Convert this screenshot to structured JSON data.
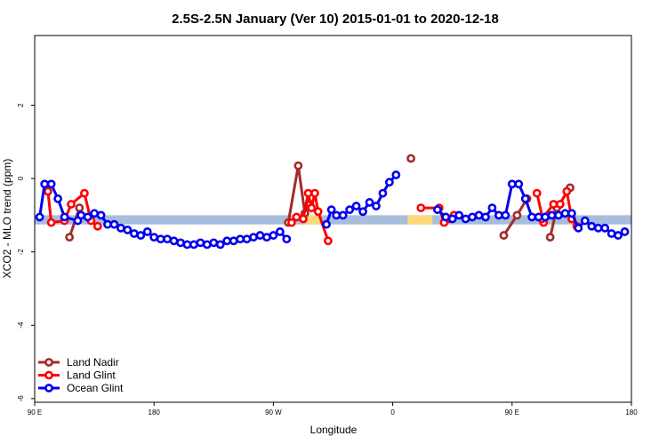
{
  "chart_data": {
    "type": "line",
    "title": "2.5S-2.5N January (Ver 10)   2015-01-01 to 2020-12-18",
    "xlabel": "Longitude",
    "ylabel": "XCO2 - MLO trend (ppm)",
    "xlim": [
      0,
      360
    ],
    "ylim": [
      -6.1,
      3.9
    ],
    "x_ticks": [
      {
        "value": 0,
        "label": "90 E"
      },
      {
        "value": 72,
        "label": "180"
      },
      {
        "value": 144,
        "label": "90 W"
      },
      {
        "value": 216,
        "label": "0"
      },
      {
        "value": 288,
        "label": "90 E"
      },
      {
        "value": 360,
        "label": "180"
      }
    ],
    "y_ticks": [
      {
        "value": 2,
        "label": "2"
      },
      {
        "value": 0,
        "label": "0"
      },
      {
        "value": -2,
        "label": "-2"
      },
      {
        "value": -4,
        "label": "-4"
      },
      {
        "value": -6,
        "label": "-6"
      }
    ],
    "legend_position": "bottom-left",
    "bands": [
      {
        "name": "ocean-mean-band",
        "x": [
          0,
          360
        ],
        "y": [
          -1.25,
          -1.0
        ],
        "color": "#a6bddb"
      },
      {
        "name": "land-band-1",
        "x": [
          164,
          172
        ],
        "y": [
          -1.25,
          -1.0
        ],
        "color": "#ffd97a"
      },
      {
        "name": "land-band-2",
        "x": [
          225,
          240
        ],
        "y": [
          -1.25,
          -1.0
        ],
        "color": "#ffd97a"
      }
    ],
    "series": [
      {
        "name": "Land Nadir",
        "color": "#a52a2a",
        "segments": [
          [
            [
              21,
              -1.6
            ],
            [
              27,
              -0.8
            ]
          ],
          [
            [
              153,
              -1.2
            ],
            [
              159,
              0.35
            ],
            [
              163,
              -0.95
            ],
            [
              166,
              -0.7
            ]
          ],
          [
            [
              227,
              0.55
            ]
          ],
          [
            [
              283,
              -1.55
            ],
            [
              291,
              -1.0
            ],
            [
              297,
              -0.55
            ]
          ],
          [
            [
              311,
              -1.6
            ],
            [
              315,
              -0.8
            ],
            [
              323,
              -0.25
            ]
          ]
        ]
      },
      {
        "name": "Land Glint",
        "color": "#ff0000",
        "segments": [
          [
            [
              8,
              -0.35
            ],
            [
              10,
              -1.2
            ],
            [
              18,
              -1.15
            ],
            [
              22,
              -0.7
            ],
            [
              30,
              -0.4
            ],
            [
              34,
              -1.15
            ],
            [
              38,
              -1.3
            ]
          ],
          [
            [
              155,
              -1.2
            ],
            [
              158,
              -1.05
            ],
            [
              162,
              -1.1
            ],
            [
              165,
              -0.4
            ],
            [
              167,
              -0.8
            ],
            [
              169,
              -0.4
            ],
            [
              171,
              -0.9
            ],
            [
              177,
              -1.7
            ]
          ],
          [
            [
              233,
              -0.8
            ],
            [
              244,
              -0.8
            ],
            [
              247,
              -1.2
            ],
            [
              250,
              -1.1
            ],
            [
              253,
              -1.0
            ]
          ],
          [
            [
              303,
              -0.4
            ],
            [
              307,
              -1.2
            ]
          ],
          [
            [
              306,
              -1.1
            ],
            [
              313,
              -0.7
            ],
            [
              317,
              -0.7
            ],
            [
              321,
              -0.35
            ],
            [
              324,
              -1.1
            ],
            [
              327,
              -1.3
            ]
          ]
        ]
      },
      {
        "name": "Ocean Glint",
        "color": "#0000ee",
        "segments": [
          [
            [
              3,
              -1.05
            ],
            [
              6,
              -0.15
            ],
            [
              10,
              -0.15
            ],
            [
              14,
              -0.55
            ],
            [
              18,
              -1.05
            ],
            [
              26,
              -1.15
            ],
            [
              28,
              -1.0
            ],
            [
              32,
              -1.05
            ],
            [
              36,
              -0.95
            ],
            [
              40,
              -1.0
            ],
            [
              44,
              -1.25
            ],
            [
              48,
              -1.25
            ],
            [
              52,
              -1.35
            ],
            [
              56,
              -1.4
            ],
            [
              60,
              -1.5
            ],
            [
              64,
              -1.55
            ],
            [
              68,
              -1.45
            ],
            [
              72,
              -1.6
            ],
            [
              76,
              -1.65
            ],
            [
              80,
              -1.65
            ],
            [
              84,
              -1.7
            ],
            [
              88,
              -1.75
            ],
            [
              92,
              -1.8
            ],
            [
              96,
              -1.8
            ],
            [
              100,
              -1.75
            ],
            [
              104,
              -1.8
            ],
            [
              108,
              -1.75
            ],
            [
              112,
              -1.8
            ],
            [
              116,
              -1.7
            ],
            [
              120,
              -1.7
            ],
            [
              124,
              -1.65
            ],
            [
              128,
              -1.65
            ],
            [
              132,
              -1.6
            ],
            [
              136,
              -1.55
            ],
            [
              140,
              -1.6
            ],
            [
              144,
              -1.55
            ],
            [
              148,
              -1.45
            ],
            [
              152,
              -1.65
            ]
          ],
          [
            [
              176,
              -1.25
            ],
            [
              179,
              -0.85
            ],
            [
              182,
              -1.0
            ],
            [
              186,
              -1.0
            ],
            [
              190,
              -0.85
            ],
            [
              194,
              -0.75
            ],
            [
              198,
              -0.9
            ],
            [
              202,
              -0.65
            ],
            [
              206,
              -0.75
            ],
            [
              210,
              -0.4
            ],
            [
              214,
              -0.1
            ],
            [
              218,
              0.1
            ]
          ],
          [
            [
              243,
              -0.85
            ],
            [
              248,
              -1.05
            ],
            [
              252,
              -1.1
            ],
            [
              256,
              -1.0
            ],
            [
              260,
              -1.1
            ],
            [
              264,
              -1.05
            ],
            [
              268,
              -1.0
            ],
            [
              272,
              -1.05
            ],
            [
              276,
              -0.8
            ],
            [
              280,
              -1.0
            ],
            [
              284,
              -1.0
            ],
            [
              288,
              -0.15
            ],
            [
              292,
              -0.15
            ],
            [
              296,
              -0.55
            ],
            [
              300,
              -1.05
            ],
            [
              304,
              -1.05
            ],
            [
              308,
              -1.05
            ],
            [
              312,
              -1.0
            ],
            [
              316,
              -1.0
            ],
            [
              320,
              -0.95
            ],
            [
              324,
              -0.95
            ],
            [
              328,
              -1.35
            ],
            [
              332,
              -1.15
            ],
            [
              336,
              -1.3
            ],
            [
              340,
              -1.35
            ],
            [
              344,
              -1.35
            ],
            [
              348,
              -1.5
            ],
            [
              352,
              -1.55
            ],
            [
              356,
              -1.45
            ]
          ]
        ]
      }
    ]
  }
}
